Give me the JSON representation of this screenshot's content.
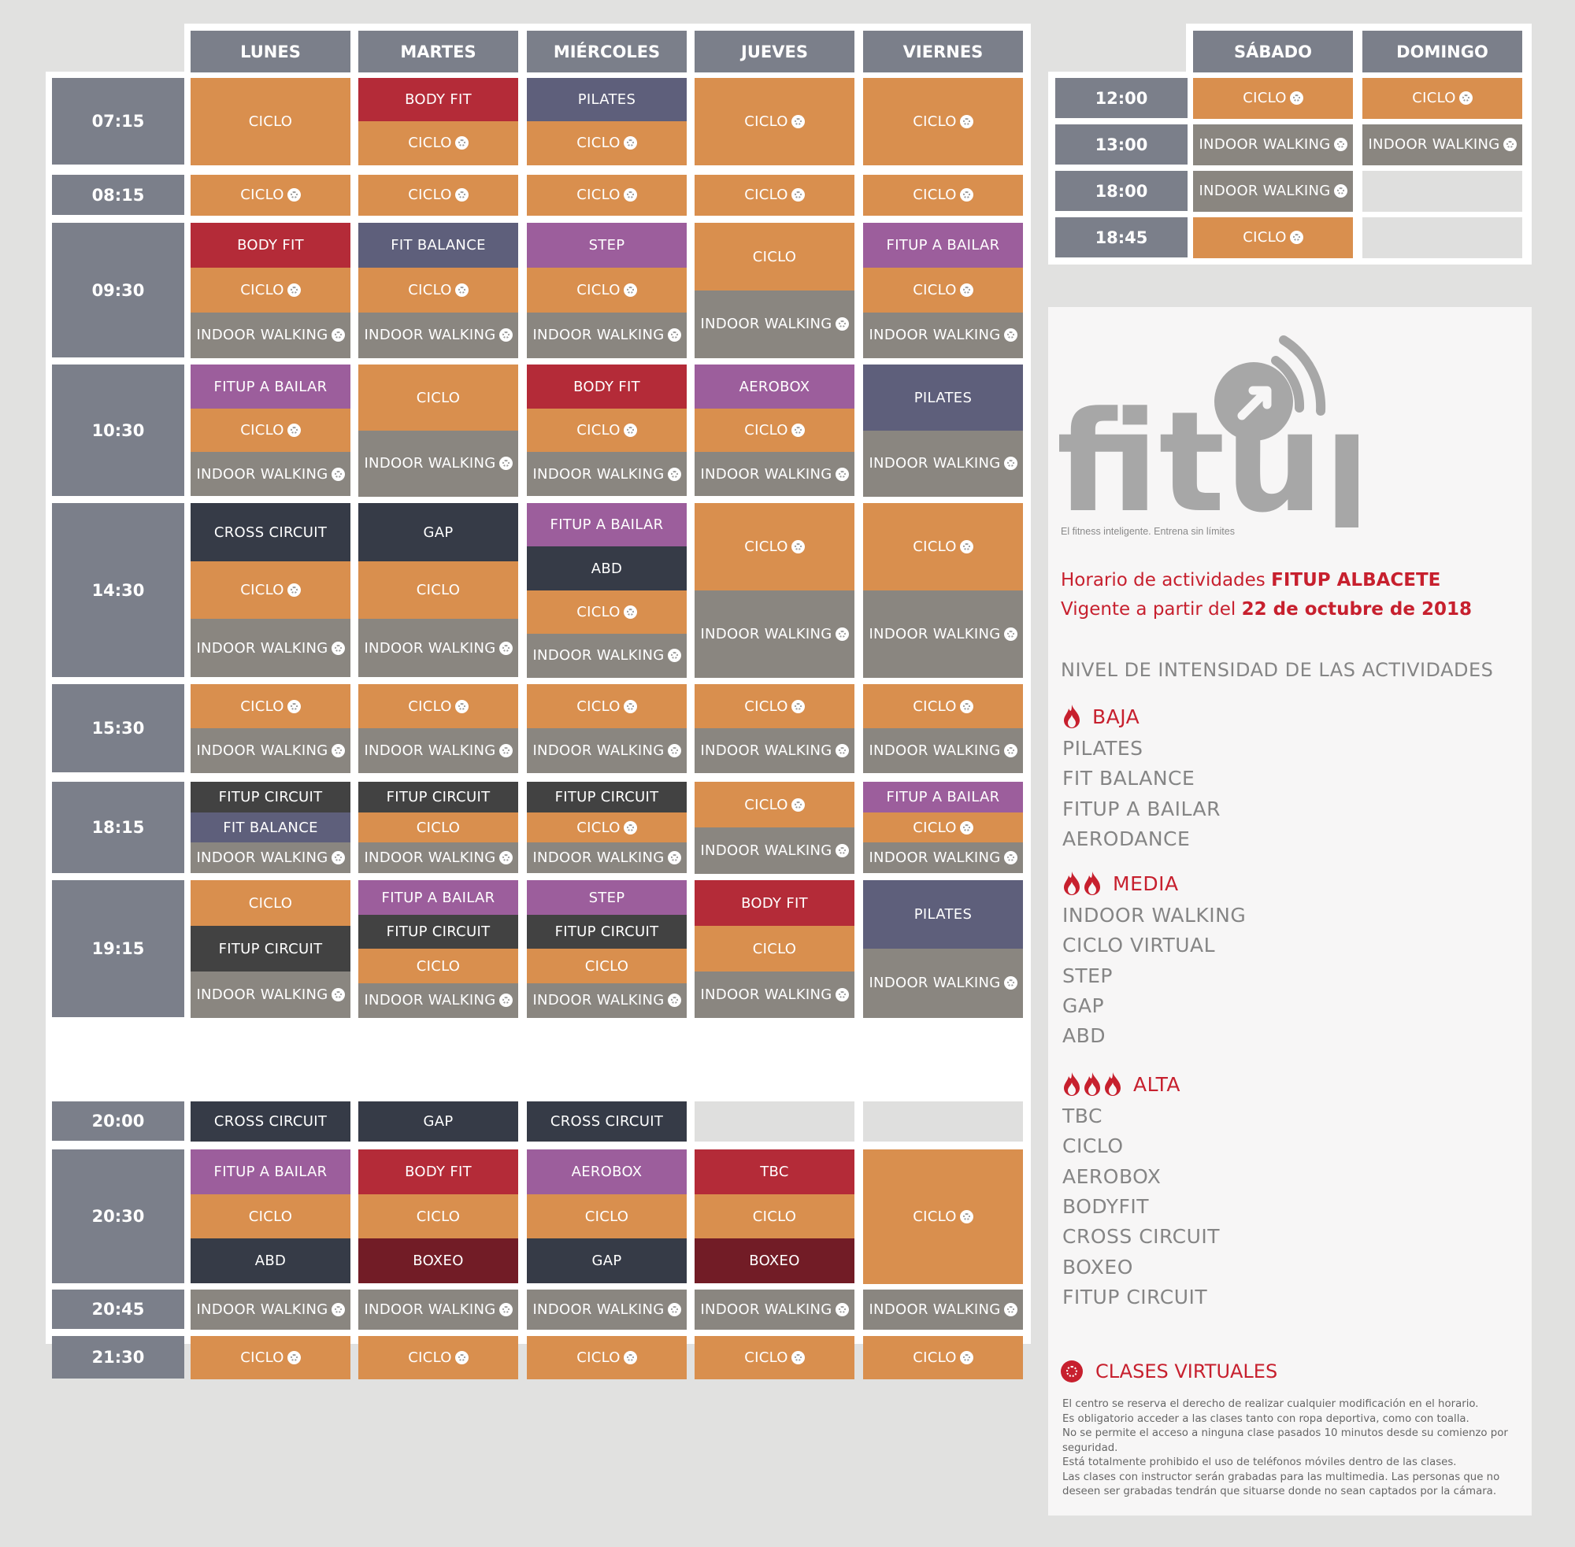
{
  "colors": {
    "ciclo": "#d98f4e",
    "indoor_walking": "#8a8680",
    "body_fit": "#b42b38",
    "pilates": "#5e5f7b",
    "fit_balance": "#5e5f7b",
    "step": "#9c5e9c",
    "fitup_a_bailar": "#9c5e9c",
    "aerobox": "#9c5e9c",
    "cross_circuit": "#363b47",
    "gap": "#363b47",
    "abd": "#363b47",
    "fitup_circuit": "#424242",
    "tbc": "#b42b38",
    "boxeo": "#721c26",
    "empty": "#dfdfde",
    "header": "#7b7f8a",
    "accent_red": "#c7202e"
  },
  "weekdays": {
    "days": [
      "LUNES",
      "MARTES",
      "MIÉRCOLES",
      "JUEVES",
      "VIERNES"
    ],
    "rows": [
      {
        "time": "07:15",
        "cells": [
          [
            {
              "t": "CICLO",
              "c": "ciclo"
            }
          ],
          [
            {
              "t": "BODY FIT",
              "c": "body_fit"
            },
            {
              "t": "CICLO",
              "c": "ciclo",
              "v": true
            }
          ],
          [
            {
              "t": "PILATES",
              "c": "pilates"
            },
            {
              "t": "CICLO",
              "c": "ciclo",
              "v": true
            }
          ],
          [
            {
              "t": "CICLO",
              "c": "ciclo",
              "v": true
            }
          ],
          [
            {
              "t": "CICLO",
              "c": "ciclo",
              "v": true
            }
          ]
        ]
      },
      {
        "time": "08:15",
        "cells": [
          [
            {
              "t": "CICLO",
              "c": "ciclo",
              "v": true
            }
          ],
          [
            {
              "t": "CICLO",
              "c": "ciclo",
              "v": true
            }
          ],
          [
            {
              "t": "CICLO",
              "c": "ciclo",
              "v": true
            }
          ],
          [
            {
              "t": "CICLO",
              "c": "ciclo",
              "v": true
            }
          ],
          [
            {
              "t": "CICLO",
              "c": "ciclo",
              "v": true
            }
          ]
        ]
      },
      {
        "time": "09:30",
        "cells": [
          [
            {
              "t": "BODY FIT",
              "c": "body_fit"
            },
            {
              "t": "CICLO",
              "c": "ciclo",
              "v": true
            },
            {
              "t": "INDOOR WALKING",
              "c": "indoor_walking",
              "v": true
            }
          ],
          [
            {
              "t": "FIT BALANCE",
              "c": "fit_balance"
            },
            {
              "t": "CICLO",
              "c": "ciclo",
              "v": true
            },
            {
              "t": "INDOOR WALKING",
              "c": "indoor_walking",
              "v": true
            }
          ],
          [
            {
              "t": "STEP",
              "c": "step"
            },
            {
              "t": "CICLO",
              "c": "ciclo",
              "v": true
            },
            {
              "t": "INDOOR WALKING",
              "c": "indoor_walking",
              "v": true
            }
          ],
          [
            {
              "t": "CICLO",
              "c": "ciclo"
            },
            {
              "t": "INDOOR WALKING",
              "c": "indoor_walking",
              "v": true
            }
          ],
          [
            {
              "t": "FITUP A BAILAR",
              "c": "fitup_a_bailar"
            },
            {
              "t": "CICLO",
              "c": "ciclo",
              "v": true
            },
            {
              "t": "INDOOR WALKING",
              "c": "indoor_walking",
              "v": true
            }
          ]
        ]
      },
      {
        "time": "10:30",
        "cells": [
          [
            {
              "t": "FITUP A BAILAR",
              "c": "fitup_a_bailar"
            },
            {
              "t": "CICLO",
              "c": "ciclo",
              "v": true
            },
            {
              "t": "INDOOR WALKING",
              "c": "indoor_walking",
              "v": true
            }
          ],
          [
            {
              "t": "CICLO",
              "c": "ciclo"
            },
            {
              "t": "INDOOR WALKING",
              "c": "indoor_walking",
              "v": true
            }
          ],
          [
            {
              "t": "BODY FIT",
              "c": "body_fit"
            },
            {
              "t": "CICLO",
              "c": "ciclo",
              "v": true
            },
            {
              "t": "INDOOR WALKING",
              "c": "indoor_walking",
              "v": true
            }
          ],
          [
            {
              "t": "AEROBOX",
              "c": "aerobox"
            },
            {
              "t": "CICLO",
              "c": "ciclo",
              "v": true
            },
            {
              "t": "INDOOR WALKING",
              "c": "indoor_walking",
              "v": true
            }
          ],
          [
            {
              "t": "PILATES",
              "c": "pilates"
            },
            {
              "t": "INDOOR WALKING",
              "c": "indoor_walking",
              "v": true
            }
          ]
        ]
      },
      {
        "time": "14:30",
        "cells": [
          [
            {
              "t": "CROSS CIRCUIT",
              "c": "cross_circuit"
            },
            {
              "t": "CICLO",
              "c": "ciclo",
              "v": true
            },
            {
              "t": "INDOOR WALKING",
              "c": "indoor_walking",
              "v": true
            }
          ],
          [
            {
              "t": "GAP",
              "c": "gap"
            },
            {
              "t": "CICLO",
              "c": "ciclo"
            },
            {
              "t": "INDOOR WALKING",
              "c": "indoor_walking",
              "v": true
            }
          ],
          [
            {
              "t": "FITUP A BAILAR",
              "c": "fitup_a_bailar"
            },
            {
              "t": "ABD",
              "c": "abd"
            },
            {
              "t": "CICLO",
              "c": "ciclo",
              "v": true
            },
            {
              "t": "INDOOR WALKING",
              "c": "indoor_walking",
              "v": true
            }
          ],
          [
            {
              "t": "CICLO",
              "c": "ciclo",
              "v": true
            },
            {
              "t": "INDOOR WALKING",
              "c": "indoor_walking",
              "v": true
            }
          ],
          [
            {
              "t": "CICLO",
              "c": "ciclo",
              "v": true
            },
            {
              "t": "INDOOR WALKING",
              "c": "indoor_walking",
              "v": true
            }
          ]
        ]
      },
      {
        "time": "15:30",
        "cells": [
          [
            {
              "t": "CICLO",
              "c": "ciclo",
              "v": true
            },
            {
              "t": "INDOOR WALKING",
              "c": "indoor_walking",
              "v": true
            }
          ],
          [
            {
              "t": "CICLO",
              "c": "ciclo",
              "v": true
            },
            {
              "t": "INDOOR WALKING",
              "c": "indoor_walking",
              "v": true
            }
          ],
          [
            {
              "t": "CICLO",
              "c": "ciclo",
              "v": true
            },
            {
              "t": "INDOOR WALKING",
              "c": "indoor_walking",
              "v": true
            }
          ],
          [
            {
              "t": "CICLO",
              "c": "ciclo",
              "v": true
            },
            {
              "t": "INDOOR WALKING",
              "c": "indoor_walking",
              "v": true
            }
          ],
          [
            {
              "t": "CICLO",
              "c": "ciclo",
              "v": true
            },
            {
              "t": "INDOOR WALKING",
              "c": "indoor_walking",
              "v": true
            }
          ]
        ]
      },
      {
        "time": "18:15",
        "cells": [
          [
            {
              "t": "FITUP CIRCUIT",
              "c": "fitup_circuit"
            },
            {
              "t": "FIT BALANCE",
              "c": "fit_balance"
            },
            {
              "t": "INDOOR WALKING",
              "c": "indoor_walking",
              "v": true
            }
          ],
          [
            {
              "t": "FITUP CIRCUIT",
              "c": "fitup_circuit"
            },
            {
              "t": "CICLO",
              "c": "ciclo"
            },
            {
              "t": "INDOOR WALKING",
              "c": "indoor_walking",
              "v": true
            }
          ],
          [
            {
              "t": "FITUP CIRCUIT",
              "c": "fitup_circuit"
            },
            {
              "t": "CICLO",
              "c": "ciclo",
              "v": true
            },
            {
              "t": "INDOOR WALKING",
              "c": "indoor_walking",
              "v": true
            }
          ],
          [
            {
              "t": "CICLO",
              "c": "ciclo",
              "v": true
            },
            {
              "t": "INDOOR WALKING",
              "c": "indoor_walking",
              "v": true
            }
          ],
          [
            {
              "t": "FITUP A BAILAR",
              "c": "fitup_a_bailar"
            },
            {
              "t": "CICLO",
              "c": "ciclo",
              "v": true
            },
            {
              "t": "INDOOR WALKING",
              "c": "indoor_walking",
              "v": true
            }
          ]
        ]
      },
      {
        "time": "19:15",
        "cells": [
          [
            {
              "t": "CICLO",
              "c": "ciclo"
            },
            {
              "t": "FITUP CIRCUIT",
              "c": "fitup_circuit"
            },
            {
              "t": "INDOOR WALKING",
              "c": "indoor_walking",
              "v": true
            }
          ],
          [
            {
              "t": "FITUP A BAILAR",
              "c": "fitup_a_bailar"
            },
            {
              "t": "FITUP CIRCUIT",
              "c": "fitup_circuit"
            },
            {
              "t": "CICLO",
              "c": "ciclo"
            },
            {
              "t": "INDOOR WALKING",
              "c": "indoor_walking",
              "v": true
            }
          ],
          [
            {
              "t": "STEP",
              "c": "step"
            },
            {
              "t": "FITUP CIRCUIT",
              "c": "fitup_circuit"
            },
            {
              "t": "CICLO",
              "c": "ciclo"
            },
            {
              "t": "INDOOR WALKING",
              "c": "indoor_walking",
              "v": true
            }
          ],
          [
            {
              "t": "BODY FIT",
              "c": "body_fit"
            },
            {
              "t": "CICLO",
              "c": "ciclo"
            },
            {
              "t": "INDOOR WALKING",
              "c": "indoor_walking",
              "v": true
            }
          ],
          [
            {
              "t": "PILATES",
              "c": "pilates"
            },
            {
              "t": "INDOOR WALKING",
              "c": "indoor_walking",
              "v": true
            }
          ]
        ]
      },
      {
        "time": "20:00",
        "cells": [
          [
            {
              "t": "CROSS CIRCUIT",
              "c": "cross_circuit"
            }
          ],
          [
            {
              "t": "GAP",
              "c": "gap"
            }
          ],
          [
            {
              "t": "CROSS CIRCUIT",
              "c": "cross_circuit"
            }
          ],
          [
            {
              "t": "",
              "c": "empty"
            }
          ],
          [
            {
              "t": "",
              "c": "empty"
            }
          ]
        ]
      },
      {
        "time": "20:30",
        "cells": [
          [
            {
              "t": "FITUP A BAILAR",
              "c": "fitup_a_bailar"
            },
            {
              "t": "CICLO",
              "c": "ciclo"
            },
            {
              "t": "ABD",
              "c": "abd"
            }
          ],
          [
            {
              "t": "BODY FIT",
              "c": "body_fit"
            },
            {
              "t": "CICLO",
              "c": "ciclo"
            },
            {
              "t": "BOXEO",
              "c": "boxeo"
            }
          ],
          [
            {
              "t": "AEROBOX",
              "c": "aerobox"
            },
            {
              "t": "CICLO",
              "c": "ciclo"
            },
            {
              "t": "GAP",
              "c": "gap"
            }
          ],
          [
            {
              "t": "TBC",
              "c": "tbc"
            },
            {
              "t": "CICLO",
              "c": "ciclo"
            },
            {
              "t": "BOXEO",
              "c": "boxeo"
            }
          ],
          [
            {
              "t": "CICLO",
              "c": "ciclo",
              "v": true
            }
          ]
        ]
      },
      {
        "time": "20:45",
        "cells": [
          [
            {
              "t": "INDOOR WALKING",
              "c": "indoor_walking",
              "v": true
            }
          ],
          [
            {
              "t": "INDOOR WALKING",
              "c": "indoor_walking",
              "v": true
            }
          ],
          [
            {
              "t": "INDOOR WALKING",
              "c": "indoor_walking",
              "v": true
            }
          ],
          [
            {
              "t": "INDOOR WALKING",
              "c": "indoor_walking",
              "v": true
            }
          ],
          [
            {
              "t": "INDOOR WALKING",
              "c": "indoor_walking",
              "v": true
            }
          ]
        ]
      },
      {
        "time": "21:30",
        "cells": [
          [
            {
              "t": "CICLO",
              "c": "ciclo",
              "v": true
            }
          ],
          [
            {
              "t": "CICLO",
              "c": "ciclo",
              "v": true
            }
          ],
          [
            {
              "t": "CICLO",
              "c": "ciclo",
              "v": true
            }
          ],
          [
            {
              "t": "CICLO",
              "c": "ciclo",
              "v": true
            }
          ],
          [
            {
              "t": "CICLO",
              "c": "ciclo",
              "v": true
            }
          ]
        ]
      }
    ]
  },
  "weekend": {
    "days": [
      "SÁBADO",
      "DOMINGO"
    ],
    "rows": [
      {
        "time": "12:00",
        "cells": [
          [
            {
              "t": "CICLO",
              "c": "ciclo",
              "v": true
            }
          ],
          [
            {
              "t": "CICLO",
              "c": "ciclo",
              "v": true
            }
          ]
        ]
      },
      {
        "time": "13:00",
        "cells": [
          [
            {
              "t": "INDOOR WALKING",
              "c": "indoor_walking",
              "v": true
            }
          ],
          [
            {
              "t": "INDOOR WALKING",
              "c": "indoor_walking",
              "v": true
            }
          ]
        ]
      },
      {
        "time": "18:00",
        "cells": [
          [
            {
              "t": "INDOOR WALKING",
              "c": "indoor_walking",
              "v": true
            }
          ],
          [
            {
              "t": "",
              "c": "empty"
            }
          ]
        ]
      },
      {
        "time": "18:45",
        "cells": [
          [
            {
              "t": "CICLO",
              "c": "ciclo",
              "v": true
            }
          ],
          [
            {
              "t": "",
              "c": "empty"
            }
          ]
        ]
      }
    ]
  },
  "info": {
    "logo_text": "fitup",
    "tagline": "El fitness inteligente. Entrena sin límites",
    "schedule_prefix": "Horario de actividades ",
    "schedule_center": "FITUP ALBACETE",
    "valid_prefix": "Vigente a partir del ",
    "valid_date": "22 de octubre de 2018",
    "intensity_title": "NIVEL DE INTENSIDAD DE LAS ACTIVIDADES",
    "levels": [
      {
        "label": "BAJA",
        "flames": 1,
        "items": [
          "PILATES",
          "FIT BALANCE",
          "FITUP A BAILAR",
          "AERODANCE"
        ]
      },
      {
        "label": "MEDIA",
        "flames": 2,
        "items": [
          "INDOOR WALKING",
          "CICLO VIRTUAL",
          "STEP",
          "GAP",
          "ABD"
        ]
      },
      {
        "label": "ALTA",
        "flames": 3,
        "items": [
          "TBC",
          "CICLO",
          "AEROBOX",
          "BODYFIT",
          "CROSS CIRCUIT",
          "BOXEO",
          "FITUP CIRCUIT"
        ]
      }
    ],
    "virtual_label": "CLASES VIRTUALES",
    "notes": [
      "El centro se reserva el derecho de realizar cualquier modificación en el horario.",
      "Es obligatorio acceder a las clases tanto con ropa deportiva, como con toalla.",
      "No se permite el acceso a ninguna clase pasados 10 minutos desde su comienzo por seguridad.",
      "Está totalmente prohibido el uso de teléfonos móviles dentro de las clases.",
      "Las clases con instructor serán grabadas para las multimedia. Las personas que no deseen ser grabadas tendrán que situarse donde no sean captados por la cámara."
    ]
  }
}
